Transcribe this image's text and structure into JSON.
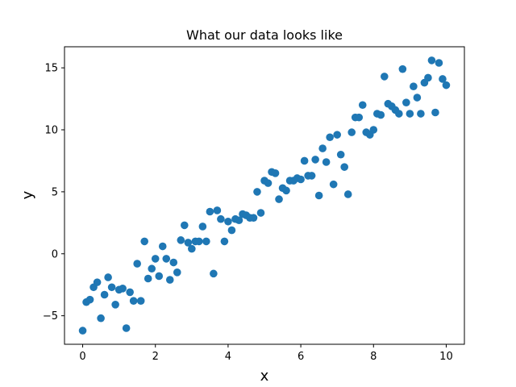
{
  "chart_data": {
    "type": "scatter",
    "title": "What our data looks like",
    "xlabel": "x",
    "ylabel": "y",
    "xlim": [
      -0.5,
      10.5
    ],
    "ylim": [
      -7.3,
      16.7
    ],
    "xticks": [
      0,
      2,
      4,
      6,
      8,
      10
    ],
    "yticks": [
      -5,
      0,
      5,
      10,
      15
    ],
    "grid": false,
    "colors": {
      "points": "#1f77b4",
      "axes": "#000000",
      "background": "#ffffff"
    },
    "series": [
      {
        "x": [
          0.0,
          0.1,
          0.2,
          0.3,
          0.4,
          0.5,
          0.6,
          0.7,
          0.8,
          0.9,
          1.0,
          1.1,
          1.2,
          1.3,
          1.4,
          1.5,
          1.6,
          1.7,
          1.8,
          1.9,
          2.0,
          2.1,
          2.2,
          2.3,
          2.4,
          2.5,
          2.6,
          2.7,
          2.8,
          2.9,
          3.0,
          3.1,
          3.2,
          3.3,
          3.4,
          3.5,
          3.6,
          3.7,
          3.8,
          3.9,
          4.0,
          4.1,
          4.2,
          4.3,
          4.4,
          4.5,
          4.6,
          4.7,
          4.8,
          4.9,
          5.0,
          5.1,
          5.2,
          5.3,
          5.4,
          5.5,
          5.6,
          5.7,
          5.8,
          5.9,
          6.0,
          6.1,
          6.2,
          6.3,
          6.4,
          6.5,
          6.6,
          6.7,
          6.8,
          6.9,
          7.0,
          7.1,
          7.2,
          7.3,
          7.4,
          7.5,
          7.6,
          7.7,
          7.8,
          7.9,
          8.0,
          8.1,
          8.2,
          8.3,
          8.4,
          8.5,
          8.6,
          8.7,
          8.8,
          8.9,
          9.0,
          9.1,
          9.2,
          9.3,
          9.4,
          9.5,
          9.6,
          9.7,
          9.8,
          9.9,
          10.0
        ],
        "y": [
          -6.2,
          -3.9,
          -3.7,
          -2.7,
          -2.3,
          -5.2,
          -3.3,
          -1.9,
          -2.7,
          -4.1,
          -2.9,
          -2.8,
          -6.0,
          -3.1,
          -3.8,
          -0.8,
          -3.8,
          1.0,
          -2.0,
          -1.2,
          -0.4,
          -1.8,
          0.6,
          -0.4,
          -2.1,
          -0.7,
          -1.5,
          1.1,
          2.3,
          0.9,
          0.4,
          1.0,
          1.0,
          2.2,
          1.0,
          3.4,
          -1.6,
          3.5,
          2.8,
          1.0,
          2.6,
          1.9,
          2.8,
          2.7,
          3.2,
          3.1,
          2.9,
          2.9,
          5.0,
          3.3,
          5.9,
          5.7,
          6.6,
          6.5,
          4.4,
          5.3,
          5.1,
          5.9,
          5.9,
          6.1,
          6.0,
          7.5,
          6.3,
          6.3,
          7.6,
          4.7,
          8.5,
          7.4,
          9.4,
          5.6,
          9.6,
          8.0,
          7.0,
          4.8,
          9.8,
          11.0,
          11.0,
          12.0,
          9.8,
          9.6,
          10.0,
          11.3,
          11.2,
          14.3,
          12.1,
          11.9,
          11.6,
          11.3,
          14.9,
          12.2,
          11.3,
          13.5,
          12.6,
          11.3,
          13.8,
          14.2,
          15.6,
          11.4,
          15.4,
          14.1,
          13.6
        ]
      }
    ]
  }
}
